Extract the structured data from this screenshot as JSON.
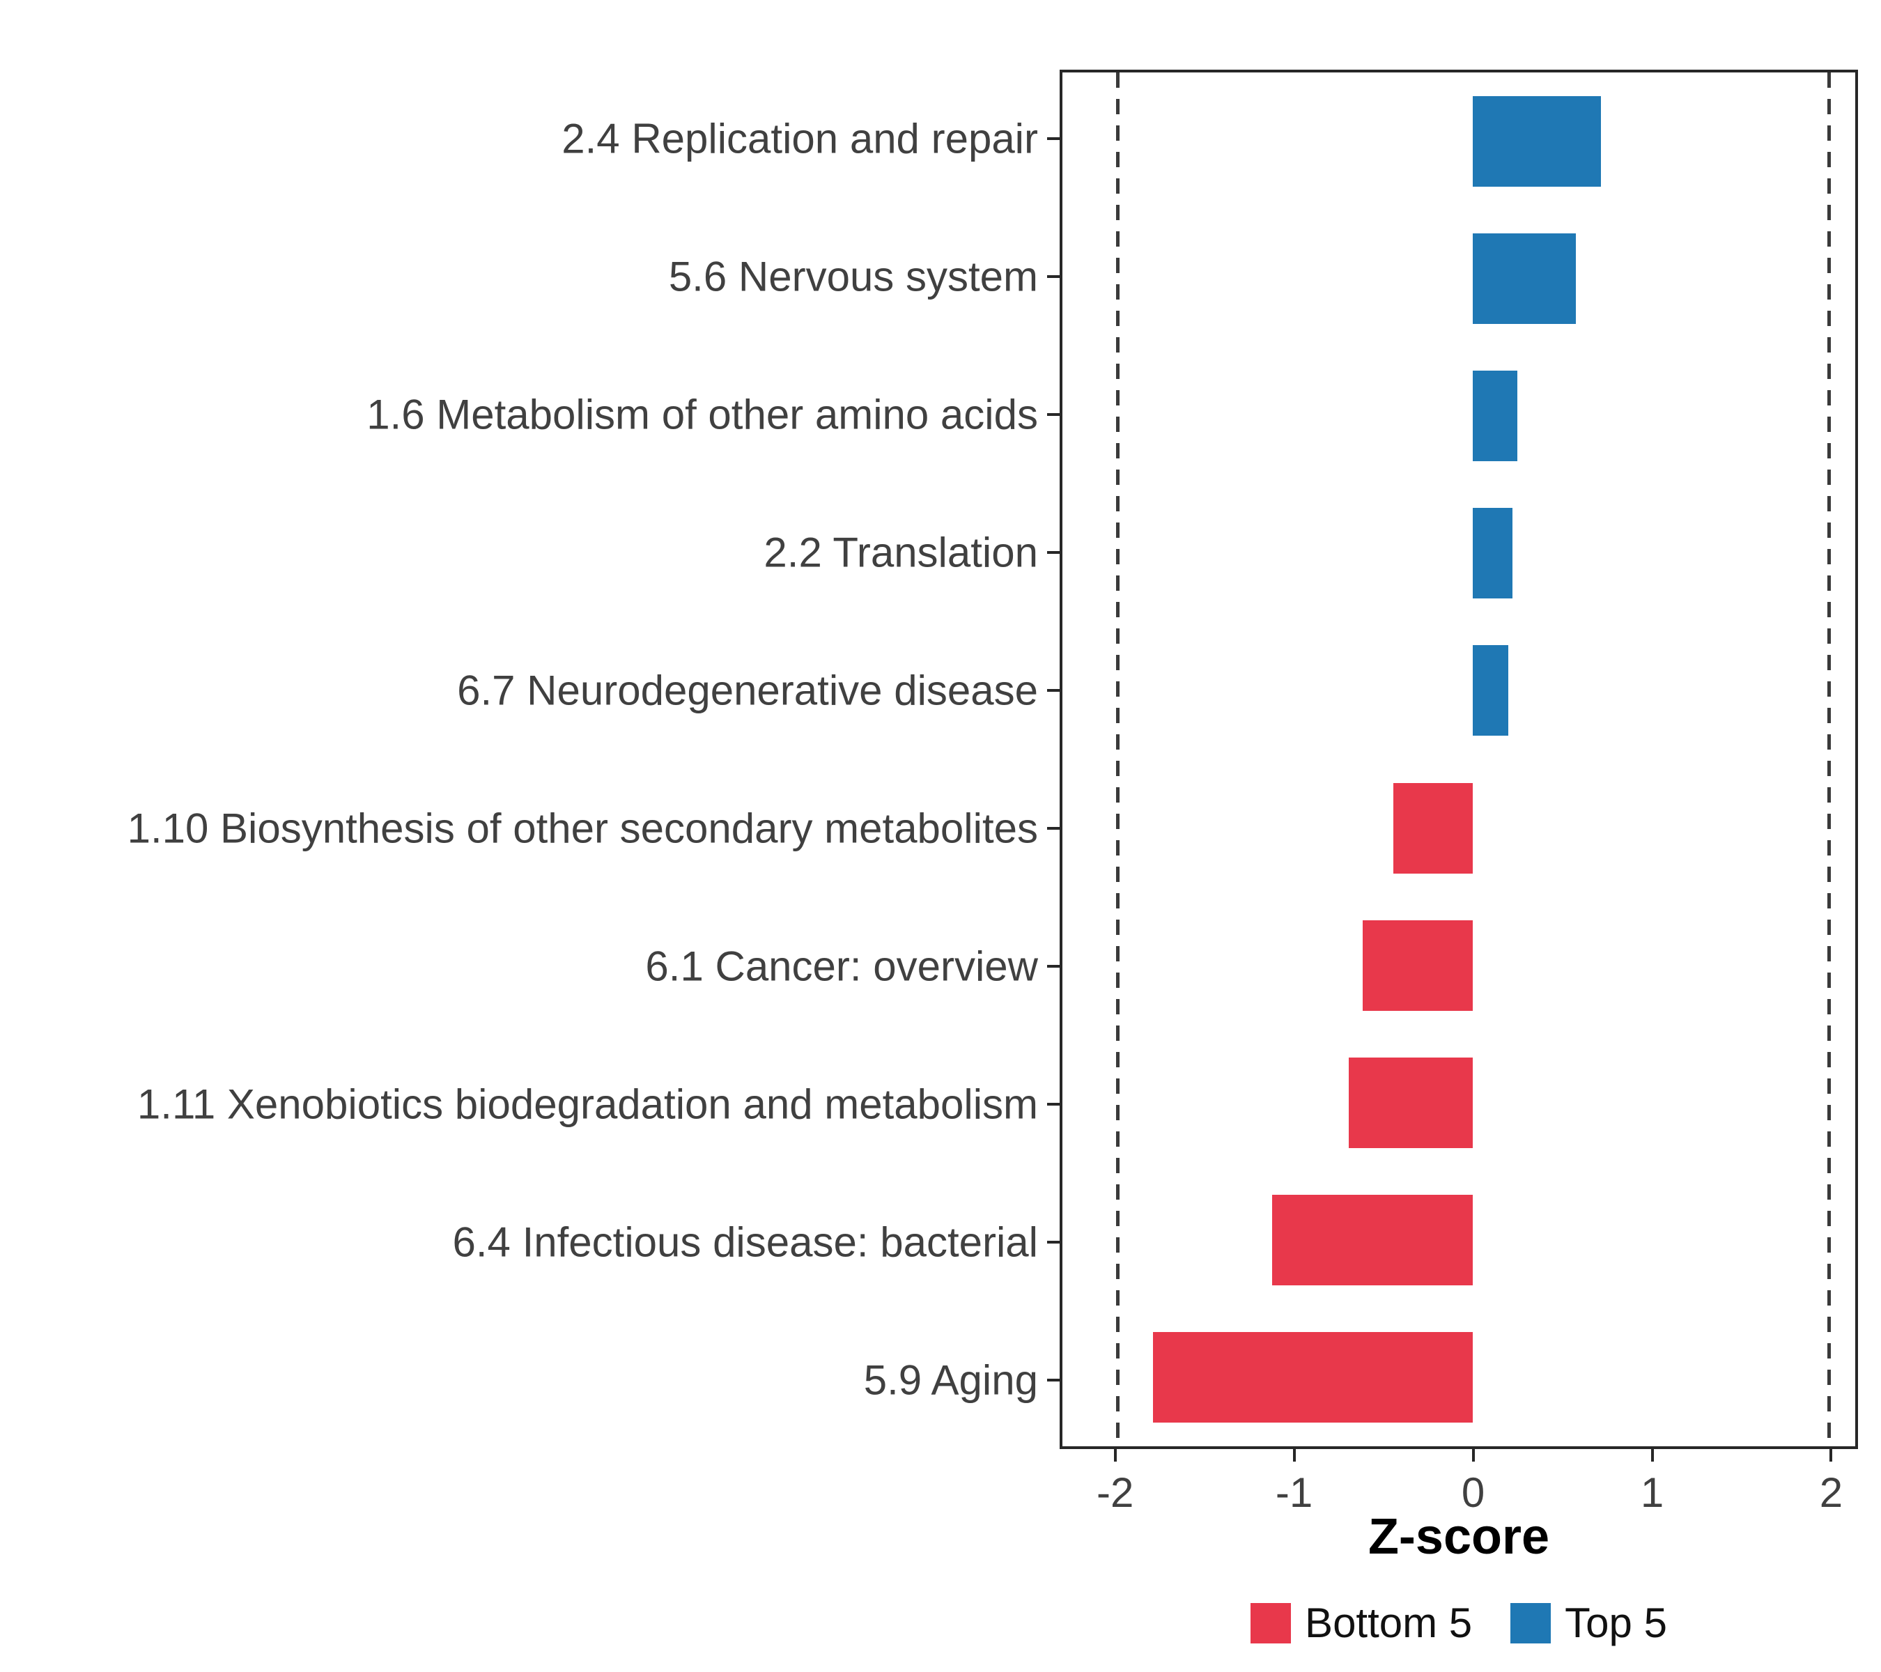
{
  "chart_data": {
    "type": "bar",
    "orientation": "horizontal",
    "title": "",
    "xlabel": "Z-score",
    "ylabel": "",
    "xlim": [
      -2.31,
      2.15
    ],
    "x_ticks": [
      -2,
      -1,
      0,
      1,
      2
    ],
    "x_tick_labels": [
      "-2",
      "-1",
      "0",
      "1",
      "2"
    ],
    "reference_lines": [
      -2,
      2
    ],
    "grid": false,
    "legend_position": "bottom",
    "categories": [
      "2.4 Replication and repair",
      "5.6 Nervous system",
      "1.6 Metabolism of other amino acids",
      "2.2 Translation",
      "6.7 Neurodegenerative disease",
      "1.10 Biosynthesis of other secondary metabolites",
      "6.1 Cancer: overview",
      "1.11 Xenobiotics biodegradation and metabolism",
      "6.4 Infectious disease: bacterial",
      "5.9 Aging"
    ],
    "values": [
      0.72,
      0.58,
      0.25,
      0.22,
      0.2,
      -0.45,
      -0.62,
      -0.7,
      -1.13,
      -1.8
    ],
    "groups": [
      "Top 5",
      "Top 5",
      "Top 5",
      "Top 5",
      "Top 5",
      "Bottom 5",
      "Bottom 5",
      "Bottom 5",
      "Bottom 5",
      "Bottom 5"
    ],
    "colors": {
      "Top 5": "#1F78B4",
      "Bottom 5": "#E8384B"
    },
    "legend": [
      {
        "label": "Bottom 5",
        "color": "#E8384B"
      },
      {
        "label": "Top 5",
        "color": "#1F78B4"
      }
    ]
  }
}
